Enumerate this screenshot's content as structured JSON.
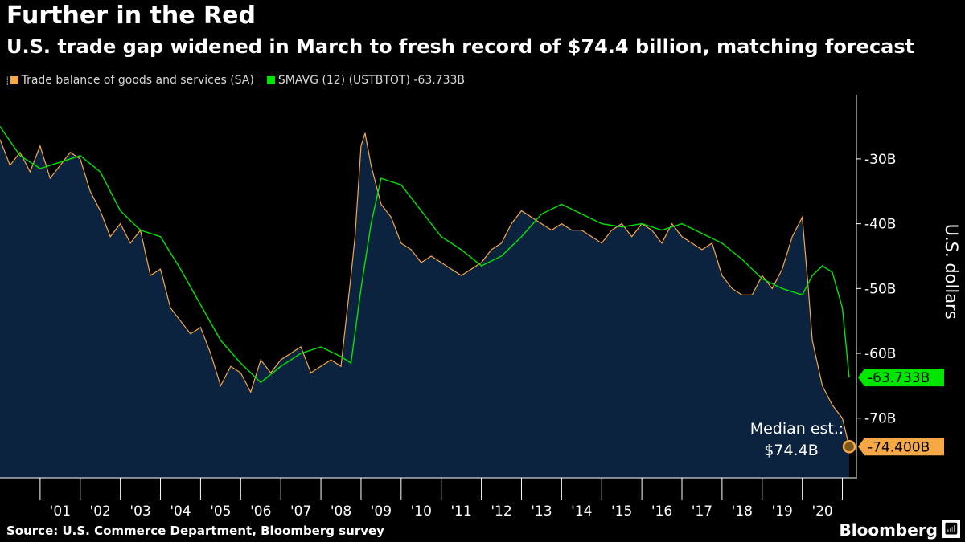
{
  "title": "Further in the Red",
  "subtitle": "U.S. trade gap widened in March to fresh record of $74.4 billion, matching forecast",
  "legend": [
    {
      "label": "Trade balance of goods and services (SA)",
      "color": "#f5a845"
    },
    {
      "label": "SMAVG (12) (USTBTOT) -63.733B",
      "color": "#00e600"
    }
  ],
  "source": "Source: U.S. Commerce Department, Bloomberg survey",
  "brand": "Bloomberg",
  "brand_icon": "bloomberg-terminal-icon",
  "chart_data": {
    "type": "line",
    "ylabel": "U.S. dollars",
    "yticks": [
      "-30B",
      "-40B",
      "-50B",
      "-60B",
      "-70B"
    ],
    "ytick_values": [
      -30,
      -40,
      -50,
      -60,
      -70
    ],
    "ylim": [
      -79.2,
      -20.1
    ],
    "xlim": [
      2000.0,
      2021.35
    ],
    "xticks": [
      "'01",
      "'02",
      "'03",
      "'04",
      "'05",
      "'06",
      "'07",
      "'08",
      "'09",
      "'10",
      "'11",
      "'12",
      "'13",
      "'14",
      "'15",
      "'16",
      "'17",
      "'18",
      "'19",
      "'20"
    ],
    "xtick_values": [
      2001,
      2002,
      2003,
      2004,
      2005,
      2006,
      2007,
      2008,
      2009,
      2010,
      2011,
      2012,
      2013,
      2014,
      2015,
      2016,
      2017,
      2018,
      2019,
      2020
    ],
    "units": "billions of U.S. dollars",
    "series": [
      {
        "name": "Trade balance of goods and services (SA)",
        "color": "#f5a845",
        "area_fill": "#0c2340",
        "x": [
          2000.0,
          2000.25,
          2000.5,
          2000.75,
          2001.0,
          2001.25,
          2001.5,
          2001.75,
          2002.0,
          2002.25,
          2002.5,
          2002.75,
          2003.0,
          2003.25,
          2003.5,
          2003.75,
          2004.0,
          2004.25,
          2004.5,
          2004.75,
          2005.0,
          2005.25,
          2005.5,
          2005.75,
          2006.0,
          2006.25,
          2006.5,
          2006.75,
          2007.0,
          2007.25,
          2007.5,
          2007.75,
          2008.0,
          2008.25,
          2008.5,
          2008.75,
          2008.85,
          2009.0,
          2009.1,
          2009.25,
          2009.5,
          2009.75,
          2010.0,
          2010.25,
          2010.5,
          2010.75,
          2011.0,
          2011.25,
          2011.5,
          2011.75,
          2012.0,
          2012.25,
          2012.5,
          2012.75,
          2013.0,
          2013.25,
          2013.5,
          2013.75,
          2014.0,
          2014.25,
          2014.5,
          2014.75,
          2015.0,
          2015.25,
          2015.5,
          2015.75,
          2016.0,
          2016.25,
          2016.5,
          2016.75,
          2017.0,
          2017.25,
          2017.5,
          2017.75,
          2018.0,
          2018.25,
          2018.5,
          2018.75,
          2019.0,
          2019.25,
          2019.5,
          2019.75,
          2020.0,
          2020.15,
          2020.25,
          2020.5,
          2020.75,
          2021.0,
          2021.17
        ],
        "values": [
          -27.0,
          -31.0,
          -29.0,
          -32.0,
          -28.0,
          -33.0,
          -31.0,
          -29.0,
          -30.0,
          -35.0,
          -38.0,
          -42.0,
          -40.0,
          -43.0,
          -41.0,
          -48.0,
          -47.0,
          -53.0,
          -55.0,
          -57.0,
          -56.0,
          -60.0,
          -65.0,
          -62.0,
          -63.0,
          -66.0,
          -61.0,
          -63.0,
          -61.0,
          -60.0,
          -59.0,
          -63.0,
          -62.0,
          -61.0,
          -62.0,
          -48.0,
          -42.0,
          -28.0,
          -26.0,
          -31.0,
          -37.0,
          -39.0,
          -43.0,
          -44.0,
          -46.0,
          -45.0,
          -46.0,
          -47.0,
          -48.0,
          -47.0,
          -46.0,
          -44.0,
          -43.0,
          -40.0,
          -38.0,
          -39.0,
          -40.0,
          -41.0,
          -40.0,
          -41.0,
          -41.0,
          -42.0,
          -43.0,
          -41.0,
          -40.0,
          -42.0,
          -40.0,
          -41.0,
          -43.0,
          -40.0,
          -42.0,
          -43.0,
          -44.0,
          -43.0,
          -48.0,
          -50.0,
          -51.0,
          -51.0,
          -48.0,
          -50.0,
          -47.0,
          -42.0,
          -39.0,
          -50.0,
          -58.0,
          -65.0,
          -68.0,
          -70.0,
          -74.4
        ]
      },
      {
        "name": "SMAVG (12) (USTBTOT)",
        "color": "#00e600",
        "x": [
          2000.0,
          2000.5,
          2001.0,
          2001.5,
          2002.0,
          2002.5,
          2003.0,
          2003.5,
          2004.0,
          2004.5,
          2005.0,
          2005.5,
          2006.0,
          2006.5,
          2007.0,
          2007.5,
          2008.0,
          2008.5,
          2008.75,
          2009.0,
          2009.25,
          2009.5,
          2010.0,
          2010.5,
          2011.0,
          2011.5,
          2012.0,
          2012.5,
          2013.0,
          2013.5,
          2014.0,
          2014.5,
          2015.0,
          2015.5,
          2016.0,
          2016.5,
          2017.0,
          2017.5,
          2018.0,
          2018.5,
          2019.0,
          2019.5,
          2020.0,
          2020.25,
          2020.5,
          2020.75,
          2021.0,
          2021.17
        ],
        "values": [
          -25.0,
          -29.5,
          -31.5,
          -30.5,
          -29.5,
          -32.0,
          -38.0,
          -41.0,
          -42.0,
          -47.0,
          -52.5,
          -58.0,
          -61.5,
          -64.5,
          -62.0,
          -60.0,
          -59.0,
          -60.5,
          -61.5,
          -50.0,
          -40.0,
          -33.0,
          -34.0,
          -38.0,
          -42.0,
          -44.0,
          -46.5,
          -45.0,
          -42.0,
          -38.5,
          -37.0,
          -38.5,
          -40.0,
          -40.5,
          -40.0,
          -41.0,
          -40.0,
          -41.5,
          -43.0,
          -45.5,
          -48.5,
          -50.0,
          -51.0,
          -48.0,
          -46.5,
          -47.5,
          -53.0,
          -63.733
        ]
      }
    ],
    "callouts": [
      {
        "label": "-63.733B",
        "value": -63.733,
        "series": "SMAVG (12) (USTBTOT)"
      },
      {
        "label": "-74.400B",
        "value": -74.4,
        "series": "Trade balance of goods and services (SA)"
      }
    ],
    "annotation": {
      "lines": [
        "Median est.:",
        "$74.4B"
      ],
      "x": 2021.17,
      "y": -74.4
    },
    "grid": false,
    "legend_position": "top-left"
  }
}
